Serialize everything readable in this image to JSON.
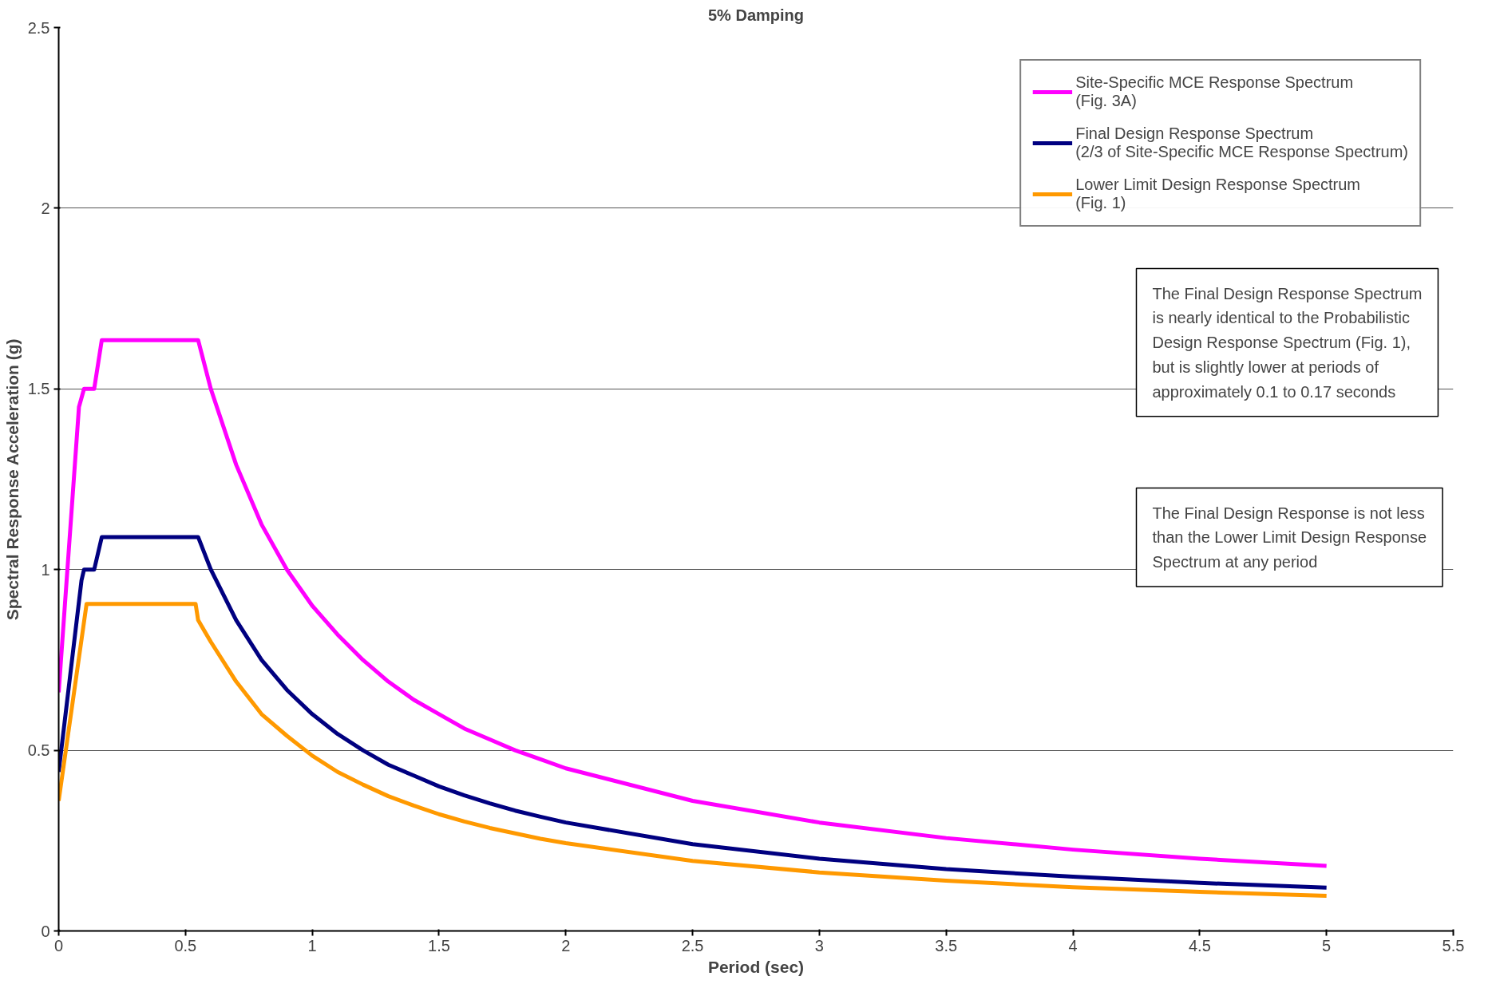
{
  "chart_data": {
    "type": "line",
    "title": "5% Damping",
    "xlabel": "Period (sec)",
    "ylabel": "Spectral Response Acceleration (g)",
    "xlim": [
      0,
      5.5
    ],
    "xticks": [
      0,
      0.5,
      1,
      1.5,
      2,
      2.5,
      3,
      3.5,
      4,
      4.5,
      5,
      5.5
    ],
    "ylim": [
      0,
      2.5
    ],
    "yticks": [
      0,
      0.5,
      1,
      1.5,
      2,
      2.5
    ],
    "grid": "y",
    "legend": "top right",
    "marker": "none",
    "line_style": "solid",
    "annotations": [
      "The Final Design Response Spectrum\nis nearly identical to the Probabilistic\nDesign Response Spectrum (Fig. 1),\nbut is slightly lower at periods of\napproximately 0.1 to 0.17 seconds",
      "The Final Design Response is not less\nthan the Lower Limit Design Response\nSpectrum at any period"
    ],
    "series": [
      {
        "name": "Site-Specific MCE Response Spectrum\n(Fig. 3A)",
        "color": "#ff00ff",
        "x": [
          0,
          0.08,
          0.1,
          0.14,
          0.17,
          0.55,
          0.6,
          0.7,
          0.8,
          0.9,
          1.0,
          1.1,
          1.2,
          1.3,
          1.4,
          1.5,
          1.6,
          1.7,
          1.8,
          1.9,
          2.0,
          2.5,
          3.0,
          3.5,
          4.0,
          4.5,
          5.0
        ],
        "values": [
          0.66,
          1.45,
          1.5,
          1.5,
          1.635,
          1.635,
          1.5,
          1.29,
          1.125,
          1.0,
          0.9,
          0.82,
          0.75,
          0.69,
          0.64,
          0.6,
          0.56,
          0.53,
          0.5,
          0.475,
          0.45,
          0.36,
          0.3,
          0.257,
          0.225,
          0.2,
          0.18
        ]
      },
      {
        "name": "Final Design Response Spectrum\n(2/3 of Site-Specific MCE Response Spectrum)",
        "color": "#000080",
        "x": [
          0,
          0.09,
          0.1,
          0.14,
          0.17,
          0.55,
          0.6,
          0.7,
          0.8,
          0.9,
          1.0,
          1.1,
          1.2,
          1.3,
          1.4,
          1.5,
          1.6,
          1.7,
          1.8,
          1.9,
          2.0,
          2.5,
          3.0,
          3.5,
          4.0,
          4.5,
          5.0
        ],
        "values": [
          0.44,
          0.97,
          1.0,
          1.0,
          1.09,
          1.09,
          1.0,
          0.86,
          0.75,
          0.667,
          0.6,
          0.545,
          0.5,
          0.46,
          0.43,
          0.4,
          0.375,
          0.353,
          0.333,
          0.316,
          0.3,
          0.24,
          0.2,
          0.171,
          0.15,
          0.133,
          0.12
        ]
      },
      {
        "name": "Lower Limit Design Response Spectrum\n(Fig. 1)",
        "color": "#ff9900",
        "x": [
          0,
          0.11,
          0.54,
          0.55,
          0.6,
          0.7,
          0.8,
          0.9,
          1.0,
          1.1,
          1.2,
          1.3,
          1.4,
          1.5,
          1.6,
          1.7,
          1.8,
          1.9,
          2.0,
          2.5,
          3.0,
          3.5,
          4.0,
          4.5,
          5.0
        ],
        "values": [
          0.36,
          0.905,
          0.905,
          0.86,
          0.8,
          0.69,
          0.6,
          0.54,
          0.485,
          0.44,
          0.405,
          0.373,
          0.347,
          0.323,
          0.303,
          0.285,
          0.27,
          0.255,
          0.243,
          0.194,
          0.162,
          0.139,
          0.121,
          0.108,
          0.097
        ]
      }
    ]
  }
}
